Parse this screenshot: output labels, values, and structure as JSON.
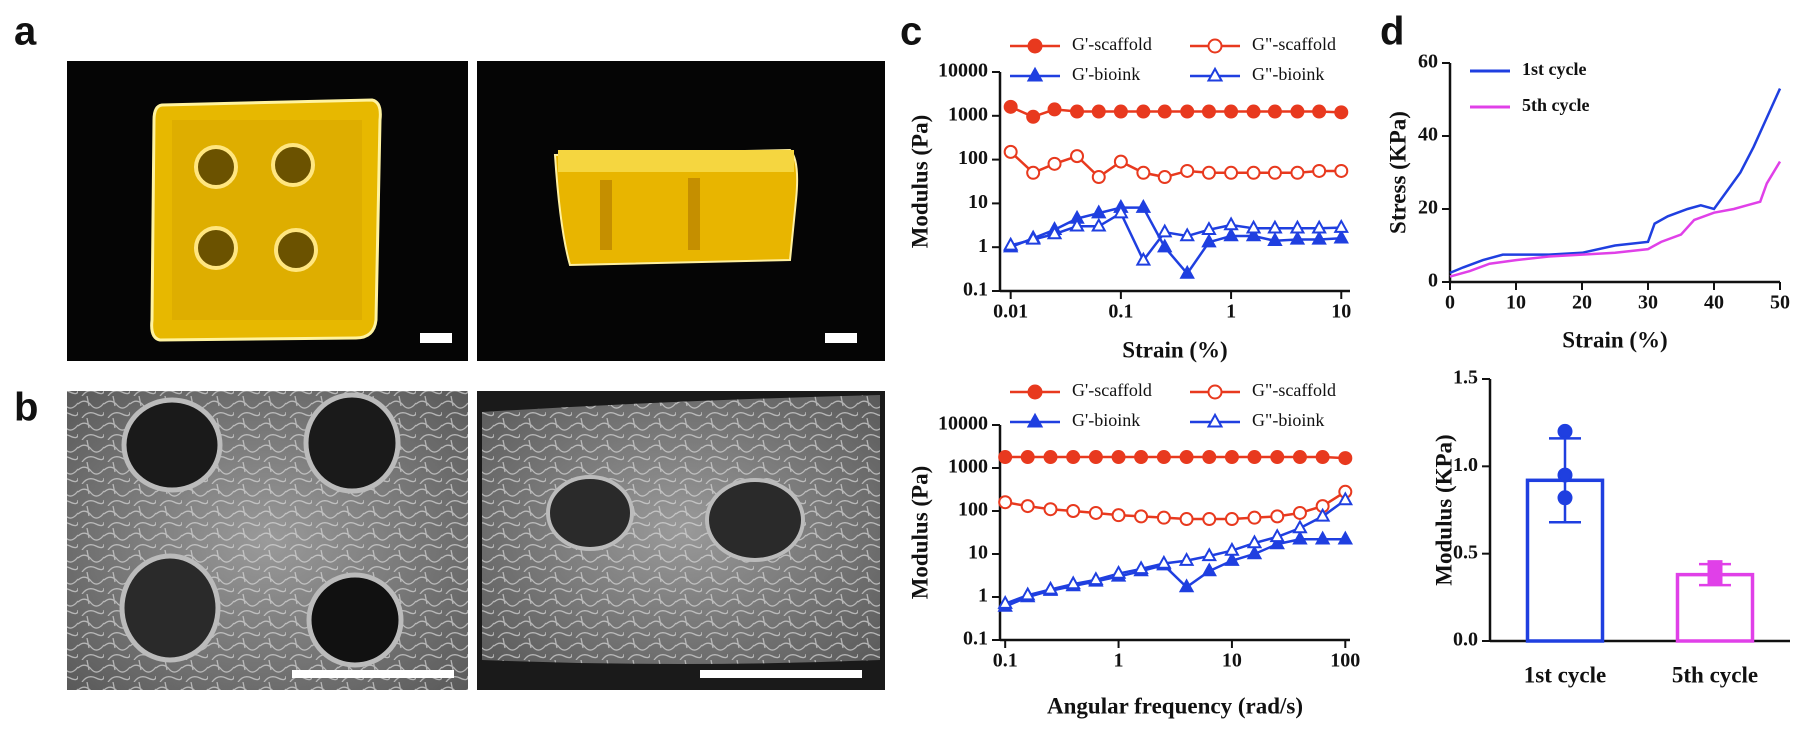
{
  "panel_labels": [
    "a",
    "b",
    "c",
    "d"
  ],
  "chart_data": [
    {
      "type": "line",
      "xscale": "log",
      "yscale": "log",
      "xlabel": "Strain (%)",
      "ylabel": "Modulus (Pa)",
      "x": [
        0.01,
        0.016,
        0.025,
        0.04,
        0.063,
        0.1,
        0.16,
        0.25,
        0.4,
        0.63,
        1,
        1.6,
        2.5,
        4,
        6.3,
        10
      ],
      "xlim": [
        0.008,
        12
      ],
      "ylim": [
        0.1,
        10000
      ],
      "xticks": [
        0.01,
        0.1,
        1,
        10
      ],
      "yticks": [
        0.1,
        1,
        10,
        100,
        1000,
        10000
      ],
      "legend": "top",
      "series": [
        {
          "name": "G'-scaffold",
          "color": "#e8391e",
          "marker": "circle",
          "filled": true,
          "values": [
            1600,
            950,
            1400,
            1250,
            1250,
            1250,
            1250,
            1250,
            1250,
            1250,
            1250,
            1250,
            1250,
            1250,
            1250,
            1200
          ]
        },
        {
          "name": "G\"-scaffold",
          "color": "#e8391e",
          "marker": "circle",
          "filled": false,
          "values": [
            150,
            50,
            80,
            120,
            40,
            90,
            50,
            40,
            55,
            50,
            50,
            50,
            50,
            50,
            55,
            55
          ]
        },
        {
          "name": "G'-bioink",
          "color": "#1f3fe0",
          "marker": "triangle",
          "filled": true,
          "values": [
            1.0,
            1.6,
            2.5,
            4.5,
            6,
            8,
            8,
            1.0,
            0.25,
            1.3,
            1.8,
            1.8,
            1.4,
            1.5,
            1.5,
            1.6
          ]
        },
        {
          "name": "G\"-bioink",
          "color": "#1f3fe0",
          "marker": "triangle",
          "filled": false,
          "values": [
            1.1,
            1.5,
            2,
            3,
            3,
            6,
            0.5,
            2.2,
            1.8,
            2.5,
            3.2,
            2.7,
            2.7,
            2.7,
            2.7,
            2.8
          ]
        }
      ]
    },
    {
      "type": "line",
      "xscale": "log",
      "yscale": "log",
      "xlabel": "Angular frequency (rad/s)",
      "ylabel": "Modulus (Pa)",
      "x": [
        0.1,
        0.158,
        0.251,
        0.398,
        0.631,
        1,
        1.58,
        2.51,
        3.98,
        6.31,
        10,
        15.8,
        25.1,
        39.8,
        63.1,
        100
      ],
      "xlim": [
        0.09,
        110
      ],
      "ylim": [
        0.1,
        10000
      ],
      "xticks": [
        0.1,
        1,
        10,
        100
      ],
      "yticks": [
        0.1,
        1,
        10,
        100,
        1000,
        10000
      ],
      "legend": "top",
      "series": [
        {
          "name": "G'-scaffold",
          "color": "#e8391e",
          "marker": "circle",
          "filled": true,
          "values": [
            1800,
            1800,
            1800,
            1800,
            1800,
            1800,
            1800,
            1800,
            1800,
            1800,
            1800,
            1800,
            1800,
            1800,
            1800,
            1700
          ]
        },
        {
          "name": "G\"-scaffold",
          "color": "#e8391e",
          "marker": "circle",
          "filled": false,
          "values": [
            160,
            130,
            110,
            100,
            90,
            80,
            75,
            70,
            65,
            65,
            65,
            70,
            75,
            90,
            130,
            280
          ]
        },
        {
          "name": "G'-bioink",
          "color": "#1f3fe0",
          "marker": "triangle",
          "filled": true,
          "values": [
            0.6,
            1.0,
            1.4,
            1.8,
            2.3,
            3,
            4,
            5.5,
            1.7,
            4,
            7,
            10,
            17,
            22,
            22,
            22
          ]
        },
        {
          "name": "G\"-bioink",
          "color": "#1f3fe0",
          "marker": "triangle",
          "filled": false,
          "values": [
            0.7,
            1.1,
            1.5,
            2,
            2.5,
            3.5,
            4.5,
            6,
            7,
            9,
            12,
            18,
            25,
            40,
            75,
            180
          ]
        }
      ]
    },
    {
      "type": "line",
      "xlabel": "Strain (%)",
      "ylabel": "Stress (KPa)",
      "xlim": [
        0,
        50
      ],
      "ylim": [
        0,
        60
      ],
      "xticks": [
        0,
        10,
        20,
        30,
        40,
        50
      ],
      "yticks": [
        0,
        20,
        40,
        60
      ],
      "legend": "upper left",
      "series": [
        {
          "name": "1st cycle",
          "color": "#1f3fe0",
          "x": [
            0,
            2,
            5,
            8,
            10,
            15,
            20,
            25,
            30,
            31,
            33,
            36,
            38,
            40,
            42,
            44,
            46,
            48,
            50
          ],
          "values": [
            2.5,
            4,
            6,
            7.5,
            7.5,
            7.5,
            8,
            10,
            11,
            16,
            18,
            20,
            21,
            20,
            25,
            30,
            37,
            45,
            53
          ]
        },
        {
          "name": "5th cycle",
          "color": "#e040e8",
          "x": [
            0,
            3,
            6,
            10,
            15,
            20,
            25,
            30,
            32,
            35,
            37,
            40,
            43,
            45,
            47,
            48,
            50
          ],
          "values": [
            1.5,
            3,
            5,
            6,
            7,
            7.5,
            8,
            9,
            11,
            13,
            17,
            19,
            20,
            21,
            22,
            27,
            33
          ]
        }
      ]
    },
    {
      "type": "bar",
      "ylabel": "Modulus (KPa)",
      "categories": [
        "1st cycle",
        "5th cycle"
      ],
      "values": [
        0.92,
        0.38
      ],
      "errors": [
        0.24,
        0.06
      ],
      "points": [
        [
          1.2,
          0.95,
          0.82
        ],
        [
          0.42,
          0.36,
          0.36
        ]
      ],
      "point_markers": [
        "circle",
        "square"
      ],
      "colors": [
        "#1f3fe0",
        "#e040e8"
      ],
      "ylim": [
        0,
        1.5
      ],
      "yticks": [
        {
          "value": 0,
          "label": "0.0"
        },
        0.5,
        {
          "value": 1,
          "label": "1.0"
        },
        1.5
      ]
    }
  ]
}
